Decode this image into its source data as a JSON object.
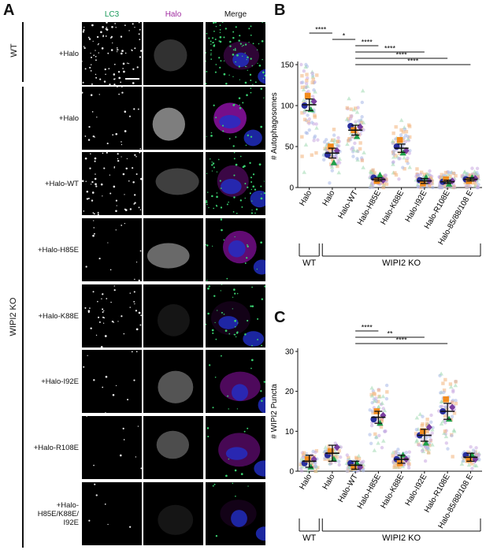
{
  "panel_a": {
    "letter": "A",
    "columns": [
      "LC3",
      "Halo",
      "Merge"
    ],
    "column_colors": [
      "#1a9a5a",
      "#a02ca0",
      "#111111"
    ],
    "group_wt": "WT",
    "group_ko": "WIPI2 KO",
    "rows": [
      "+Halo",
      "+Halo",
      "+Halo-WT",
      "+Halo-H85E",
      "+Halo-K88E",
      "+Halo-I92E",
      "+Halo-R108E",
      "+Halo-\nH85E/K88E/\nI92E"
    ]
  },
  "chart_data": [
    {
      "panel": "B",
      "type": "scatter",
      "ylabel": "# Autophagosomes",
      "ylim": [
        0,
        150
      ],
      "yticks": [
        0,
        50,
        100,
        150
      ],
      "categories": [
        "Halo",
        "Halo",
        "Halo-WT",
        "Halo-H85E",
        "Halo-K88E",
        "Halo-I92E",
        "Halo-R108E",
        "Halo-85/88/108 E"
      ],
      "means": [
        101,
        42,
        70,
        10,
        48,
        8,
        7,
        10
      ],
      "sem": [
        7,
        6,
        6,
        2,
        5,
        3,
        2,
        2
      ],
      "replicate_means": [
        [
          100,
          112,
          95,
          105
        ],
        [
          40,
          50,
          30,
          45
        ],
        [
          75,
          70,
          62,
          74
        ],
        [
          12,
          8,
          15,
          9
        ],
        [
          50,
          58,
          42,
          45
        ],
        [
          9,
          5,
          12,
          8
        ],
        [
          7,
          10,
          4,
          8
        ],
        [
          10,
          8,
          12,
          11
        ]
      ],
      "significance": [
        {
          "label": "****",
          "from": 0,
          "to": 1
        },
        {
          "label": "*",
          "from": 1,
          "to": 2
        },
        {
          "label": "****",
          "from": 2,
          "to": 3
        },
        {
          "label": "****",
          "from": 2,
          "to": 5
        },
        {
          "label": "****",
          "from": 2,
          "to": 6
        },
        {
          "label": "****",
          "from": 2,
          "to": 7
        }
      ],
      "groups": [
        {
          "label": "WT",
          "from": 0,
          "to": 0
        },
        {
          "label": "WIPI2 KO",
          "from": 1,
          "to": 7
        }
      ]
    },
    {
      "panel": "C",
      "type": "scatter",
      "ylabel": "# WIPI2 Puncta",
      "ylim": [
        0,
        30
      ],
      "yticks": [
        0,
        10,
        20,
        30
      ],
      "categories": [
        "Halo",
        "Halo",
        "Halo-WT",
        "Halo-H85E",
        "Halo-K88E",
        "Halo-I92E",
        "Halo-R108E",
        "Halo-85/88/108 E"
      ],
      "means": [
        2.5,
        4.5,
        1.5,
        13.5,
        3,
        9,
        15,
        3.5
      ],
      "sem": [
        1.5,
        2,
        1,
        1.5,
        1,
        1.5,
        2,
        1
      ],
      "replicate_means": [
        [
          2,
          3,
          1,
          3
        ],
        [
          4,
          5,
          3,
          6
        ],
        [
          2,
          1,
          2,
          1
        ],
        [
          13,
          15,
          12,
          14
        ],
        [
          3,
          2,
          4,
          3
        ],
        [
          9,
          10,
          7,
          11
        ],
        [
          15,
          18,
          13,
          16
        ],
        [
          4,
          3,
          4,
          3
        ]
      ],
      "significance": [
        {
          "label": "****",
          "from": 2,
          "to": 3
        },
        {
          "label": "**",
          "from": 2,
          "to": 5
        },
        {
          "label": "****",
          "from": 2,
          "to": 6
        }
      ],
      "groups": [
        {
          "label": "WT",
          "from": 0,
          "to": 0
        },
        {
          "label": "WIPI2 KO",
          "from": 1,
          "to": 7
        }
      ]
    }
  ],
  "replicate_colors": [
    "#2a2f9e",
    "#f28c1e",
    "#1fa04a",
    "#7a3fa0"
  ],
  "cloud_colors": [
    "#f2b37a",
    "#a8b8e8",
    "#9fd8b0",
    "#c9a8e0"
  ]
}
